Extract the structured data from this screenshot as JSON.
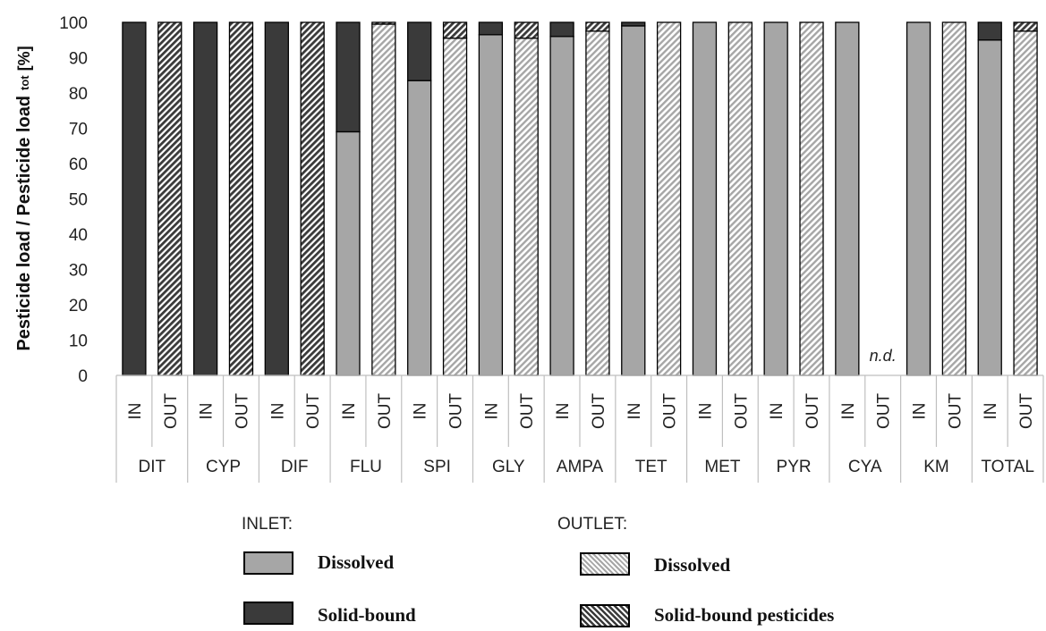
{
  "chart_data": {
    "type": "bar",
    "stacked": true,
    "ylabel_main": "Pesticide load / Pesticide load",
    "ylabel_sub": "tot",
    "ylabel_unit": " [%]",
    "ylim": [
      0,
      100
    ],
    "yticks": [
      "0",
      "10",
      "20",
      "30",
      "40",
      "50",
      "60",
      "70",
      "80",
      "90",
      "100"
    ],
    "groups": [
      "DIT",
      "CYP",
      "DIF",
      "FLU",
      "SPI",
      "GLY",
      "AMPA",
      "TET",
      "MET",
      "PYR",
      "CYA",
      "KM",
      "TOTAL"
    ],
    "subcategories": [
      "IN",
      "OUT"
    ],
    "series": [
      {
        "name": "Dissolved",
        "values_in": [
          0,
          0,
          0,
          69,
          83.5,
          96.5,
          96,
          99,
          100,
          100,
          100,
          100,
          95
        ],
        "values_out": [
          0,
          0,
          0,
          99.5,
          95.5,
          95.5,
          97.5,
          100,
          100,
          100,
          null,
          100,
          97.5
        ]
      },
      {
        "name": "Solid-bound",
        "values_in": [
          100,
          100,
          100,
          31,
          16.5,
          3.5,
          4,
          1,
          0,
          0,
          0,
          0,
          5
        ],
        "values_out": [
          100,
          100,
          100,
          0.5,
          4.5,
          4.5,
          2.5,
          0,
          0,
          0,
          null,
          0,
          2.5
        ]
      }
    ],
    "annotations": [
      {
        "text": "n.d.",
        "group": "CYA",
        "sub": "OUT"
      }
    ],
    "colors": {
      "dissolved": "#a6a6a6",
      "solid": "#3a3a3a",
      "outline": "#000000",
      "grid": "#bfbfbf"
    }
  },
  "legend": {
    "inlet_heading": "INLET:",
    "outlet_heading": "OUTLET:",
    "inlet_dissolved": "Dissolved",
    "inlet_solid": "Solid-bound",
    "outlet_dissolved": "Dissolved",
    "outlet_solid": "Solid-bound pesticides"
  }
}
